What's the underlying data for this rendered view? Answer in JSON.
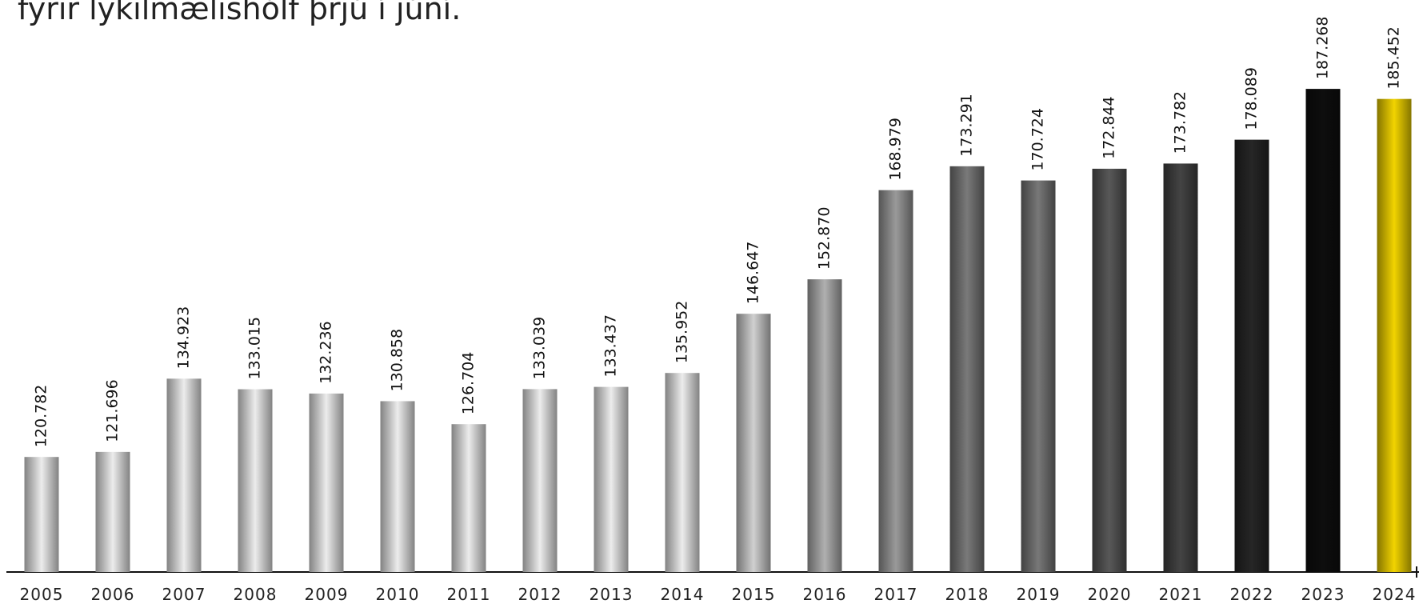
{
  "chart_data": {
    "type": "bar",
    "title": "fyrir lykilmælishólf þrjú í júní.",
    "categories": [
      "2005",
      "2006",
      "2007",
      "2008",
      "2009",
      "2010",
      "2011",
      "2012",
      "2013",
      "2014",
      "2015",
      "2016",
      "2017",
      "2018",
      "2019",
      "2020",
      "2021",
      "2022",
      "2023",
      "2024"
    ],
    "values": [
      120782,
      121696,
      134923,
      133015,
      132236,
      130858,
      126704,
      133039,
      133437,
      135952,
      146647,
      152870,
      168979,
      173291,
      170724,
      172844,
      173782,
      178089,
      187268,
      185452
    ],
    "value_labels": [
      "120.782",
      "121.696",
      "134.923",
      "133.015",
      "132.236",
      "130.858",
      "126.704",
      "133.039",
      "133.437",
      "135.952",
      "146.647",
      "152.870",
      "168.979",
      "173.291",
      "170.724",
      "172.844",
      "173.782",
      "178.089",
      "187.268",
      "185.452"
    ],
    "colors": [
      "#ececec",
      "#ececec",
      "#ececec",
      "#ececec",
      "#ececec",
      "#ececec",
      "#ececec",
      "#ececec",
      "#ececec",
      "#ececec",
      "#d0d0d0",
      "#b0b0b0",
      "#9a9a9a",
      "#7a7a7a",
      "#787878",
      "#585858",
      "#444444",
      "#262626",
      "#0e0e0e",
      "#f2d400"
    ],
    "ylim": [
      100000,
      200000
    ]
  }
}
